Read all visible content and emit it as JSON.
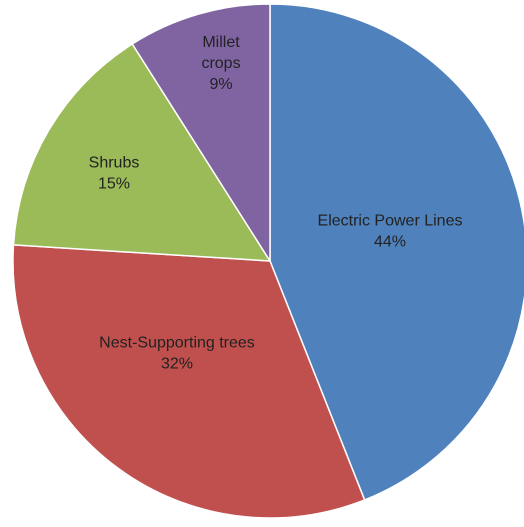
{
  "chart_data": {
    "type": "pie",
    "slices": [
      {
        "label": "Electric Power Lines",
        "value": 44,
        "value_label": "44%",
        "color": "#4F81BD"
      },
      {
        "label": "Nest-Supporting trees",
        "value": 32,
        "value_label": "32%",
        "color": "#C0504D"
      },
      {
        "label": "Shrubs",
        "value": 15,
        "value_label": "15%",
        "color": "#9BBB59"
      },
      {
        "label": "Millet crops",
        "value": 9,
        "value_label": "9%",
        "color": "#8064A2"
      }
    ],
    "start": "12 o'clock",
    "direction": "clockwise",
    "legend": "none"
  }
}
